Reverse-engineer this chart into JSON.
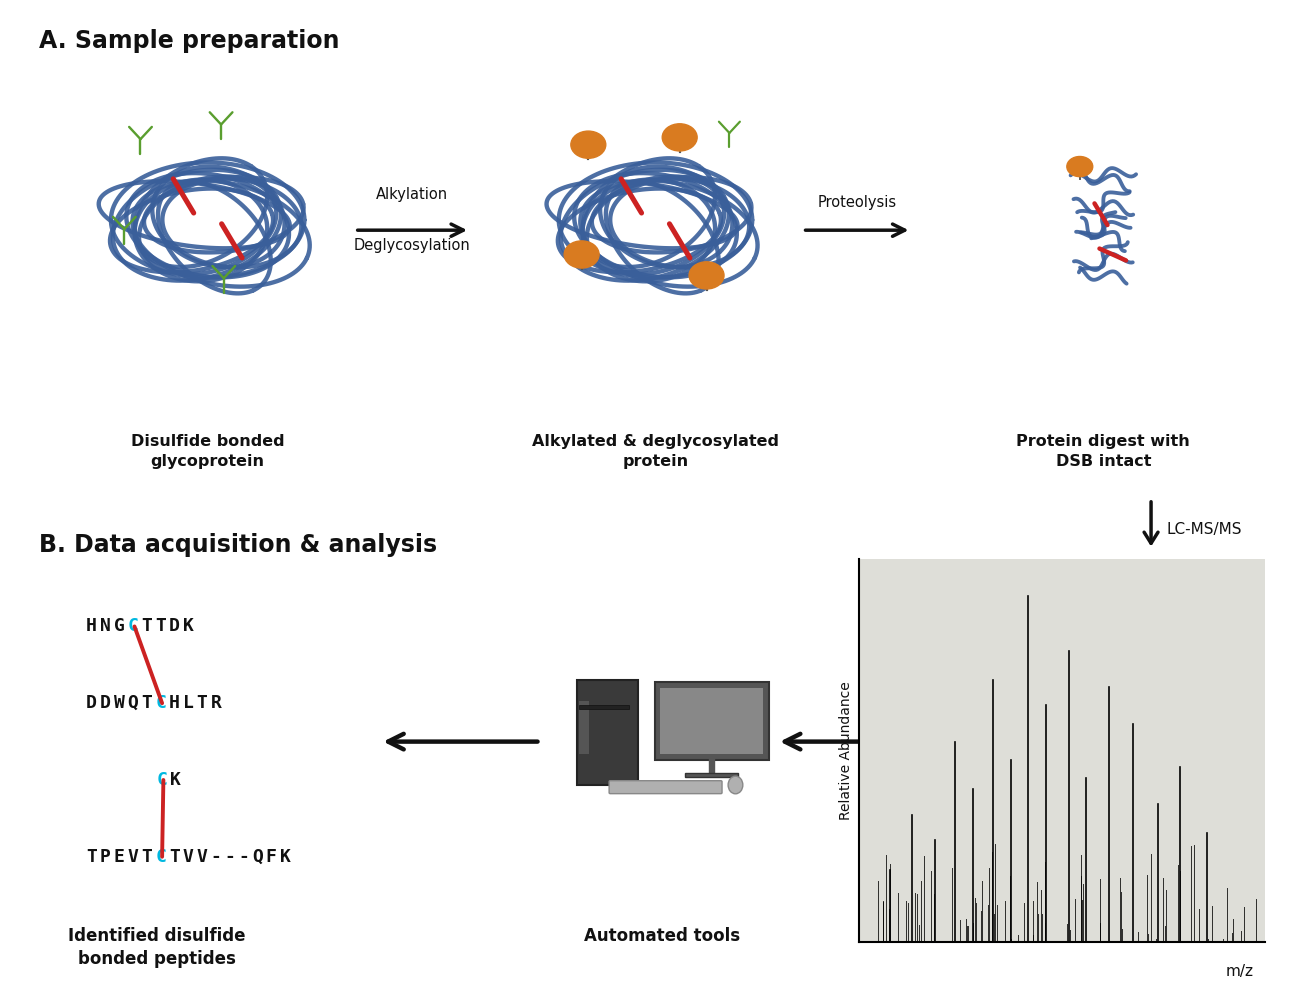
{
  "title_A": "A. Sample preparation",
  "title_B": "B. Data acquisition & analysis",
  "label1": "Disulfide bonded\nglycoprotein",
  "label2": "Alkylated & deglycosylated\nprotein",
  "label3": "Protein digest with\nDSB intact",
  "arrow1_label_line1": "Alkylation",
  "arrow1_label_line2": "Deglycosylation",
  "arrow2_label": "Proteolysis",
  "lcms_label": "LC-MS/MS",
  "peptide1": "HNGCTTDK",
  "peptide2": "DDWQTCHLTR",
  "peptide3": "CK",
  "peptide4": "TPEVTCTVV---QFK",
  "label_identified": "Identified disulfide\nbonded peptides",
  "label_automated": "Automated tools",
  "label_ms_x": "m/z",
  "label_ms_y": "Relative Abundance",
  "bg_color_A": "#f2e8eb",
  "bg_color_B": "#deded8",
  "border_color": "#222222",
  "protein_color": "#3a5f9a",
  "glycan_color": "#5a9e2f",
  "dsb_color": "#cc2222",
  "alkyl_color": "#d97b20",
  "text_color": "#111111",
  "cyan_color": "#00b8e0",
  "arrow_color": "#111111",
  "ms_bg": "#deded8"
}
